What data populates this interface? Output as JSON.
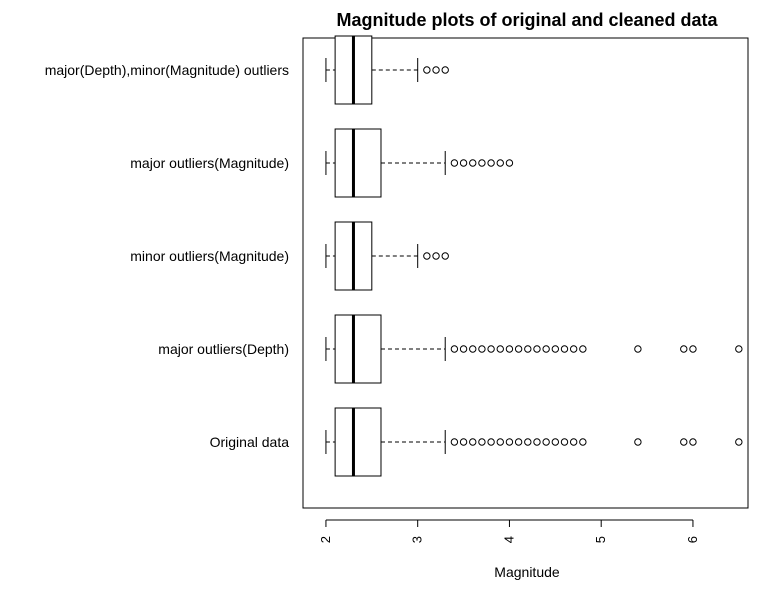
{
  "chart_data": {
    "type": "boxplot",
    "orientation": "horizontal",
    "title": "Magnitude plots of original and cleaned data",
    "xlabel": "Magnitude",
    "ylabel": "",
    "xlim": [
      1.75,
      6.6
    ],
    "xticks": [
      "2",
      "3",
      "4",
      "5",
      "6"
    ],
    "grid": false,
    "categories": [
      "Original data",
      "major outliers(Depth)",
      "minor outliers(Magnitude)",
      "major outliers(Magnitude)",
      "major(Depth),minor(Magnitude) outliers"
    ],
    "boxes": [
      {
        "whisker_low": 2.0,
        "q1": 2.1,
        "median": 2.3,
        "q3": 2.6,
        "whisker_high": 3.3,
        "outliers": [
          3.4,
          3.5,
          3.6,
          3.7,
          3.8,
          3.9,
          4.0,
          4.1,
          4.2,
          4.3,
          4.4,
          4.5,
          4.6,
          4.7,
          4.8,
          5.4,
          5.9,
          6.0,
          6.5
        ]
      },
      {
        "whisker_low": 2.0,
        "q1": 2.1,
        "median": 2.3,
        "q3": 2.6,
        "whisker_high": 3.3,
        "outliers": [
          3.4,
          3.5,
          3.6,
          3.7,
          3.8,
          3.9,
          4.0,
          4.1,
          4.2,
          4.3,
          4.4,
          4.5,
          4.6,
          4.7,
          4.8,
          5.4,
          5.9,
          6.0,
          6.5
        ]
      },
      {
        "whisker_low": 2.0,
        "q1": 2.1,
        "median": 2.3,
        "q3": 2.5,
        "whisker_high": 3.0,
        "outliers": [
          3.1,
          3.2,
          3.3
        ]
      },
      {
        "whisker_low": 2.0,
        "q1": 2.1,
        "median": 2.3,
        "q3": 2.6,
        "whisker_high": 3.3,
        "outliers": [
          3.4,
          3.5,
          3.6,
          3.7,
          3.8,
          3.9,
          4.0
        ]
      },
      {
        "whisker_low": 2.0,
        "q1": 2.1,
        "median": 2.3,
        "q3": 2.5,
        "whisker_high": 3.0,
        "outliers": [
          3.1,
          3.2,
          3.3
        ]
      }
    ]
  }
}
